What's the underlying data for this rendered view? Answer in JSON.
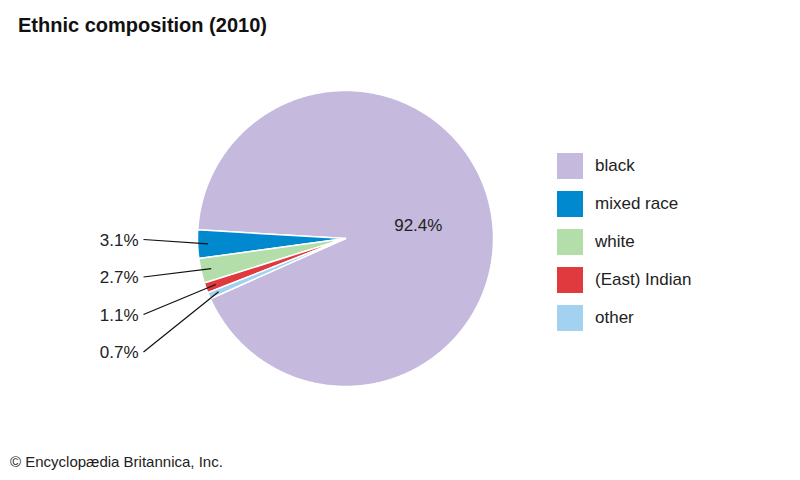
{
  "chart_data": {
    "type": "pie",
    "title": "Ethnic composition (2010)",
    "categories": [
      "black",
      "mixed race",
      "white",
      "(East) Indian",
      "other"
    ],
    "values": [
      92.4,
      3.1,
      2.7,
      1.1,
      0.7
    ],
    "value_labels": [
      "92.4%",
      "3.1%",
      "2.7%",
      "1.1%",
      "0.7%"
    ],
    "colors": [
      "#c5b9dd",
      "#0089cf",
      "#b3deaa",
      "#e0393e",
      "#a2d2ef"
    ],
    "data_labels": true,
    "legend": "right",
    "caption": "© Encyclopædia Britannica, Inc."
  }
}
